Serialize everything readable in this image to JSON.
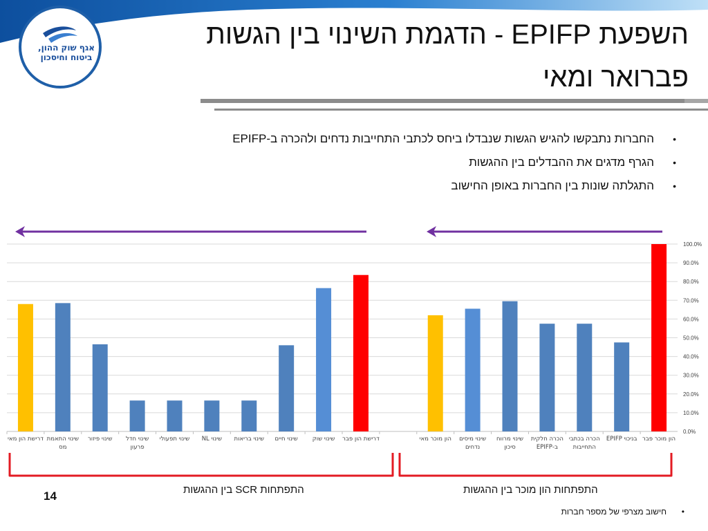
{
  "slide": {
    "title_line1": "השפעת EPIFP - הדגמת השינוי בין הגשות",
    "title_line2": "פברואר ומאי",
    "logo_line1": "אגף שוק ההון,",
    "logo_line2": "ביטוח וחיסכון",
    "bullets": [
      "החברות נתבקשו להגיש הגשות שנבדלו ביחס לכתבי התחייבות נדחים ולהכרה ב-EPIFP",
      "הגרף מדגים את ההבדלים בין ההגשות",
      "התגלתה שונות בין החברות באופן החישוב"
    ],
    "brace_left_label": "התפתחות SCR בין ההגשות",
    "brace_right_label": "התפתחות הון מוכר בין ההגשות",
    "page_number": "14",
    "footnote": "חישוב מצרפי של מספר חברות",
    "colors": {
      "blue_bar": "#4f81bd",
      "light_blue_bar": "#558ed5",
      "yellow_bar": "#ffc000",
      "red_bar": "#ff0000",
      "arrow": "#7030a0",
      "brace": "#e31b23",
      "header_blue": "#1565b0"
    },
    "icons": [
      "logo-bird-icon",
      "left-arrow-icon"
    ]
  },
  "chart_data": {
    "type": "bar",
    "ylim": [
      0,
      100
    ],
    "yticks": [
      "0.0%",
      "10.0%",
      "20.0%",
      "30.0%",
      "40.0%",
      "50.0%",
      "60.0%",
      "70.0%",
      "80.0%",
      "90.0%",
      "100.0%"
    ],
    "grid": true,
    "categories": [
      [
        "דרישת הון מאי"
      ],
      [
        "שינוי התאמת",
        "מס"
      ],
      [
        "שינוי פיזור"
      ],
      [
        "שינוי חדל",
        "פרעון"
      ],
      [
        "שינוי תפעולי"
      ],
      [
        "שינוי NL"
      ],
      [
        "שינוי בריאות"
      ],
      [
        "שינוי חיים"
      ],
      [
        "שינוי שוק"
      ],
      [
        "דרישת הון פבר"
      ],
      [
        ""
      ],
      [
        "הון מוכר מאי"
      ],
      [
        "שינוי מיסים",
        "נדחים"
      ],
      [
        "שינוי מרווח",
        "סיכון"
      ],
      [
        "הכרה חלקית",
        "ב-EPIFP"
      ],
      [
        "הכרה בכתבי",
        "התחייבות"
      ],
      [
        "בניכוי EPIFP"
      ],
      [
        "הון מוכר פבר"
      ]
    ],
    "values": [
      68,
      68.5,
      46.5,
      16.5,
      16.5,
      16.5,
      16.5,
      46,
      76.5,
      83.5,
      null,
      62,
      65.5,
      69.5,
      57.5,
      57.5,
      47.5,
      100
    ],
    "bar_colors": [
      "yellow",
      "blue",
      "blue",
      "blue",
      "blue",
      "blue",
      "blue",
      "blue",
      "light",
      "red",
      null,
      "yellow",
      "light",
      "blue",
      "blue",
      "blue",
      "blue",
      "red"
    ]
  }
}
